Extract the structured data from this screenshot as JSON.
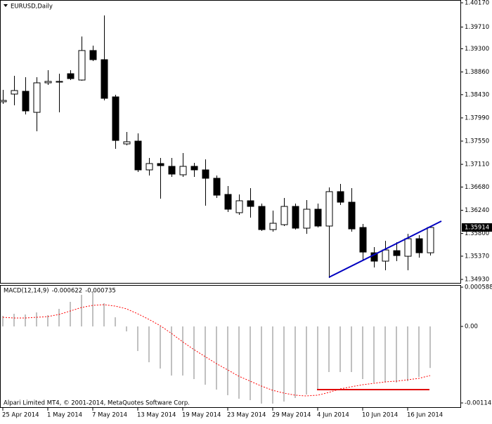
{
  "chart_data": [
    {
      "type": "candlestick",
      "title": "EURUSD,Daily",
      "bull_color": "#ffffff",
      "bear_color": "#000000",
      "outline": "#000000",
      "categories": [
        "25 Apr 2014",
        null,
        null,
        null,
        "1 May 2014",
        null,
        null,
        null,
        "7 May 2014",
        null,
        null,
        null,
        "13 May 2014",
        null,
        null,
        null,
        "19 May 2014",
        null,
        null,
        null,
        "23 May 2014",
        null,
        null,
        null,
        "29 May 2014",
        null,
        null,
        null,
        "4 Jun 2014",
        null,
        null,
        null,
        "10 Jun 2014",
        null,
        null,
        null,
        "16 Jun 2014",
        null,
        null
      ],
      "open": [
        1.38295,
        1.38441,
        1.38494,
        1.38095,
        1.38654,
        1.38667,
        1.38827,
        1.38707,
        1.39266,
        1.39093,
        1.38388,
        1.37497,
        1.3755,
        1.37005,
        1.37125,
        1.37072,
        1.36912,
        1.37072,
        1.37005,
        1.36846,
        1.3654,
        1.36194,
        1.3642,
        1.36313,
        1.35874,
        1.35967,
        1.36313,
        1.35901,
        1.3626,
        1.35941,
        1.36593,
        1.36393,
        1.35914,
        1.35435,
        1.35276,
        1.35475,
        1.35369,
        1.35701,
        1.35435
      ],
      "high": [
        1.38521,
        1.38787,
        1.3876,
        1.3876,
        1.38893,
        1.38827,
        1.38893,
        1.39532,
        1.39359,
        1.39931,
        1.38428,
        1.37723,
        1.37696,
        1.37231,
        1.37231,
        1.37231,
        1.37324,
        1.37138,
        1.37204,
        1.36899,
        1.36699,
        1.3654,
        1.36659,
        1.36367,
        1.36234,
        1.36473,
        1.36367,
        1.36433,
        1.36367,
        1.36673,
        1.36739,
        1.36659,
        1.35981,
        1.35542,
        1.35661,
        1.35635,
        1.35794,
        1.35768,
        1.35941
      ],
      "low": [
        1.38255,
        1.38228,
        1.38055,
        1.37736,
        1.38614,
        1.38095,
        1.38707,
        1.38694,
        1.39066,
        1.38321,
        1.37404,
        1.3747,
        1.36965,
        1.36899,
        1.3646,
        1.36872,
        1.36872,
        1.36872,
        1.36327,
        1.36473,
        1.36207,
        1.36154,
        1.36101,
        1.35848,
        1.35834,
        1.35941,
        1.35874,
        1.35794,
        1.35914,
        1.34957,
        1.3634,
        1.35834,
        1.35302,
        1.35156,
        1.35103,
        1.35276,
        1.35103,
        1.35342,
        1.35382
      ],
      "close": [
        1.38321,
        1.38508,
        1.38122,
        1.38654,
        1.38681,
        1.38681,
        1.38734,
        1.39266,
        1.39093,
        1.38361,
        1.37563,
        1.37537,
        1.37005,
        1.37125,
        1.37085,
        1.36925,
        1.37072,
        1.37005,
        1.36846,
        1.36526,
        1.3626,
        1.3642,
        1.36313,
        1.35874,
        1.35994,
        1.36313,
        1.35901,
        1.3626,
        1.35941,
        1.36593,
        1.36393,
        1.35887,
        1.35448,
        1.35276,
        1.35488,
        1.35382,
        1.35701,
        1.35435,
        1.35914
      ],
      "last_price": 1.35914,
      "last_price_color": "#000000",
      "ylim": [
        1.34864,
        1.40223
      ],
      "yticks": [
        {
          "value": 1.4017,
          "label": "1.40170"
        },
        {
          "value": 1.3971,
          "label": "1.39710"
        },
        {
          "value": 1.393,
          "label": "1.39300"
        },
        {
          "value": 1.3886,
          "label": "1.38860"
        },
        {
          "value": 1.3843,
          "label": "1.38430"
        },
        {
          "value": 1.3799,
          "label": "1.37990"
        },
        {
          "value": 1.3755,
          "label": "1.37550"
        },
        {
          "value": 1.3711,
          "label": "1.37110"
        },
        {
          "value": 1.3668,
          "label": "1.36680"
        },
        {
          "value": 1.3624,
          "label": "1.36240"
        },
        {
          "value": 1.358,
          "label": "1.35800"
        },
        {
          "value": 1.3537,
          "label": "1.35370"
        },
        {
          "value": 1.3493,
          "label": "1.34930"
        }
      ]
    },
    {
      "type": "macd",
      "title": "MACD(12,14,9)",
      "macd_value": -0.000622,
      "signal_value": -0.000735,
      "series": [
        {
          "name": "MACD",
          "color": "#c0c0c0",
          "values": [
            0.000158,
            0.000189,
            0.000179,
            0.00021,
            0.000168,
            0.000263,
            0.000368,
            0.000473,
            0.000525,
            0.000347,
            0.000137,
            -7.4e-05,
            -0.000368,
            -0.000536,
            -0.00063,
            -0.000735,
            -0.000735,
            -0.000788,
            -0.000872,
            -0.000945,
            -0.001029,
            -0.001082,
            -0.001103,
            -0.001155,
            -0.001155,
            -0.001124,
            -0.001071,
            -0.001019,
            -0.000945,
            -0.000683,
            -0.000683,
            -0.000683,
            -0.000788,
            -0.00084,
            -0.00084,
            -0.00084,
            -0.000819,
            -0.000756,
            -0.000622
          ]
        },
        {
          "name": "Signal",
          "color": "#ff0000",
          "values": [
            0.000137,
            0.000126,
            0.000126,
            0.000137,
            0.000147,
            0.000179,
            0.000231,
            0.000284,
            0.000315,
            0.000326,
            0.000305,
            0.000263,
            0.000189,
            0.000105,
            1.1e-05,
            -0.000105,
            -0.000231,
            -0.000347,
            -0.000452,
            -0.000557,
            -0.000651,
            -0.000746,
            -0.000819,
            -0.000893,
            -0.000956,
            -0.000998,
            -0.001029,
            -0.00104,
            -0.001029,
            -0.000987,
            -0.000935,
            -0.000903,
            -0.000872,
            -0.000851,
            -0.00083,
            -0.000819,
            -0.000798,
            -0.000777,
            -0.000735
          ]
        }
      ],
      "ylim": [
        -0.001208,
        0.00062
      ],
      "yticks": [
        0.000588,
        {
          "value": 0,
          "label": "0.00"
        },
        -0.001145
      ],
      "footer": "Alpari Limited MT4, © 2001-2014, MetaQuotes Software Corp."
    }
  ]
}
